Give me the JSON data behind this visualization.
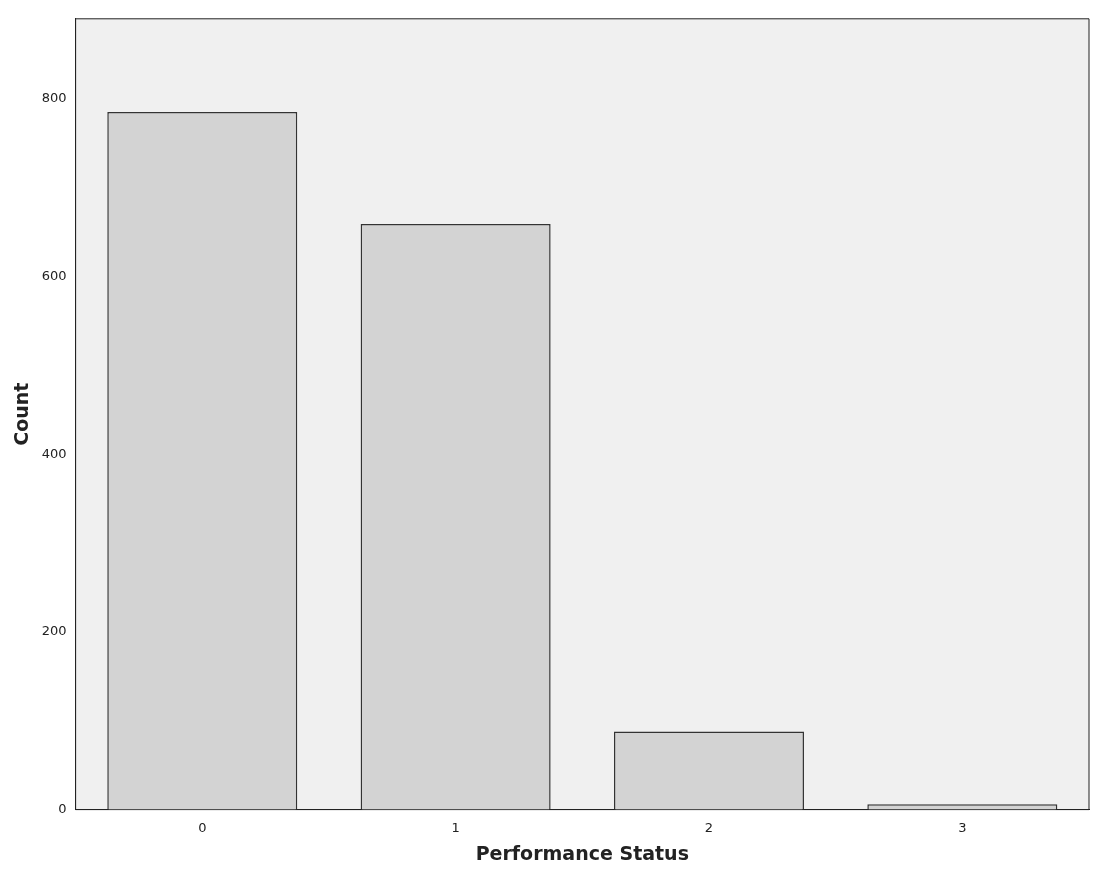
{
  "chart_data": {
    "type": "bar",
    "xlabel": "Performance Status",
    "ylabel": "Count",
    "categories": [
      "0",
      "1",
      "2",
      "3"
    ],
    "values": [
      785,
      659,
      88,
      6
    ],
    "color": "#d3d3d3",
    "ylim": [
      0,
      890
    ],
    "yticks": [
      0,
      200,
      400,
      600,
      800
    ],
    "grid": false,
    "legend": false
  }
}
